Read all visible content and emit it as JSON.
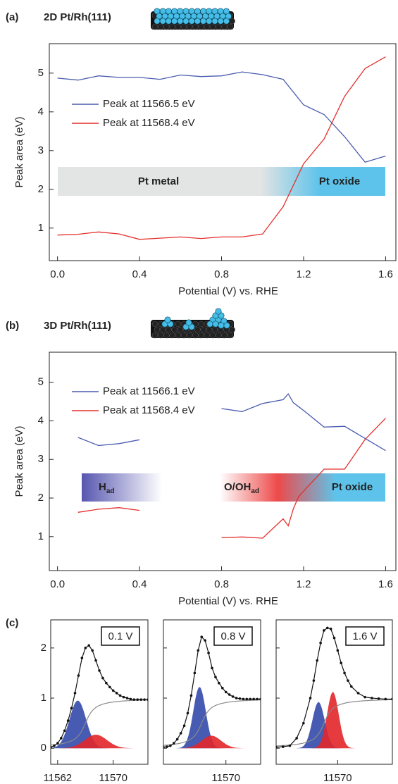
{
  "chart_data": [
    {
      "type": "line",
      "panel_label": "(a)",
      "title": "2D Pt/Rh(111)",
      "x_label": "Potential (V) vs. RHE",
      "y_label": "Peak area (eV)",
      "xlim": [
        -0.04,
        1.65
      ],
      "ylim": [
        0.16,
        5.76
      ],
      "xticks": [
        {
          "value": 0,
          "label": "0.0"
        },
        0.4,
        0.8,
        1.2,
        1.6
      ],
      "yticks": [
        1,
        2,
        3,
        4,
        5
      ],
      "series": [
        {
          "name": "Peak at 11566.5 eV",
          "color": "#4a5cae",
          "x": [
            0,
            0.1,
            0.2,
            0.3,
            0.4,
            0.5,
            0.6,
            0.7,
            0.8,
            0.9,
            1.0,
            1.1,
            1.2,
            1.3,
            1.4,
            1.5,
            1.6
          ],
          "values": [
            4.87,
            4.82,
            4.93,
            4.89,
            4.89,
            4.84,
            4.95,
            4.91,
            4.93,
            5.03,
            4.96,
            4.84,
            4.18,
            3.93,
            3.36,
            2.7,
            2.86
          ]
        },
        {
          "name": "Peak at 11568.4 eV",
          "color": "#e2302c",
          "x": [
            0,
            0.1,
            0.2,
            0.3,
            0.4,
            0.5,
            0.6,
            0.7,
            0.8,
            0.9,
            1.0,
            1.1,
            1.2,
            1.3,
            1.4,
            1.5,
            1.6
          ],
          "values": [
            0.82,
            0.84,
            0.9,
            0.85,
            0.71,
            0.74,
            0.77,
            0.73,
            0.77,
            0.77,
            0.85,
            1.55,
            2.66,
            3.3,
            4.4,
            5.12,
            5.42
          ]
        }
      ],
      "bands": [
        {
          "text": "Pt metal"
        },
        {
          "text": "Pt oxide"
        }
      ]
    },
    {
      "type": "line",
      "panel_label": "(b)",
      "title": "3D Pt/Rh(111)",
      "x_label": "Potential (V) vs. RHE",
      "y_label": "Peak area (eV)",
      "xlim": [
        -0.04,
        1.65
      ],
      "ylim": [
        0.12,
        5.78
      ],
      "xticks": [
        {
          "value": 0,
          "label": "0.0"
        },
        0.4,
        0.8,
        1.2,
        1.6
      ],
      "yticks": [
        1,
        2,
        3,
        4,
        5
      ],
      "series": [
        {
          "name": "Peak at 11566.1 eV",
          "color": "#4a5cae",
          "x": [
            0.1,
            0.2,
            0.3,
            0.4,
            0.6,
            0.8,
            0.9,
            1.0,
            1.1,
            1.125,
            1.15,
            1.175,
            1.2,
            1.3,
            1.4,
            1.6
          ],
          "values": [
            3.57,
            3.36,
            3.41,
            3.51,
            null,
            4.32,
            4.24,
            4.45,
            4.55,
            4.7,
            4.47,
            4.37,
            4.27,
            3.84,
            3.86,
            3.23
          ]
        },
        {
          "name": "Peak at 11568.4 eV",
          "color": "#e2302c",
          "x": [
            0.1,
            0.2,
            0.3,
            0.4,
            0.6,
            0.8,
            0.9,
            1.0,
            1.1,
            1.125,
            1.15,
            1.175,
            1.2,
            1.3,
            1.4,
            1.5,
            1.6
          ],
          "values": [
            1.63,
            1.71,
            1.75,
            1.68,
            null,
            0.97,
            0.99,
            0.96,
            1.46,
            1.28,
            1.72,
            2.03,
            2.18,
            2.75,
            2.75,
            3.52,
            4.07
          ]
        }
      ],
      "bands": [
        {
          "text": "H",
          "sub": "ad"
        },
        {
          "text": "O/OH",
          "sub": "ad"
        },
        {
          "text": "Pt oxide"
        }
      ]
    },
    {
      "type": "spectra",
      "panel_label": "(c)",
      "ylim": [
        -0.32,
        2.56
      ],
      "yticks": [
        0,
        1,
        2
      ],
      "subplots": [
        {
          "label": "0.1 V",
          "xlim": [
            11561,
            11575
          ],
          "xticks": [
            11562,
            11570
          ],
          "x": [
            11561,
            11561.5,
            11562,
            11562.5,
            11563,
            11563.5,
            11564,
            11564.5,
            11565,
            11565.5,
            11566,
            11566.5,
            11567,
            11567.5,
            11568,
            11568.5,
            11569,
            11569.5,
            11570,
            11570.5,
            11571,
            11571.5,
            11572,
            11572.5,
            11573,
            11573.5,
            11574,
            11574.5,
            11575
          ],
          "values": [
            0.02,
            0.05,
            0.1,
            0.2,
            0.35,
            0.55,
            0.8,
            1.1,
            1.45,
            1.8,
            2.0,
            2.05,
            1.95,
            1.75,
            1.55,
            1.4,
            1.3,
            1.22,
            1.15,
            1.1,
            1.05,
            1.02,
            1.0,
            0.98,
            0.97,
            0.97,
            0.97,
            0.97,
            0.97
          ],
          "background": {
            "center": 11566,
            "height": 1,
            "width": 1
          },
          "peaks": [
            {
              "center": 11564.9,
              "height": 0.95,
              "width": 1.2,
              "color": "#3349aa"
            },
            {
              "center": 11567.5,
              "height": 0.27,
              "width": 1.6,
              "color": "#e2262a"
            }
          ]
        },
        {
          "label": "0.8 V",
          "xlim": [
            11561,
            11575
          ],
          "xticks": [
            11570
          ],
          "x": [
            11561,
            11561.5,
            11562,
            11562.5,
            11563,
            11563.5,
            11564,
            11564.5,
            11565,
            11565.5,
            11566,
            11566.5,
            11567,
            11567.5,
            11568,
            11568.5,
            11569,
            11569.5,
            11570,
            11570.5,
            11571,
            11571.5,
            11572,
            11572.5,
            11573,
            11573.5,
            11574,
            11574.5,
            11575
          ],
          "values": [
            0.02,
            0.03,
            0.05,
            0.1,
            0.18,
            0.3,
            0.45,
            0.7,
            1.05,
            1.5,
            1.95,
            2.22,
            2.15,
            1.9,
            1.6,
            1.42,
            1.3,
            1.2,
            1.12,
            1.07,
            1.03,
            1.0,
            0.99,
            0.98,
            0.98,
            0.98,
            0.98,
            0.98,
            0.98
          ],
          "background": {
            "center": 11566.5,
            "height": 1,
            "width": 1
          },
          "peaks": [
            {
              "center": 11566.2,
              "height": 1.22,
              "width": 0.9,
              "color": "#3349aa"
            },
            {
              "center": 11567.9,
              "height": 0.25,
              "width": 1.4,
              "color": "#e2262a"
            }
          ]
        },
        {
          "label": "1.6 V",
          "xlim": [
            11561,
            11578
          ],
          "xticks": [
            11570
          ],
          "x": [
            11561,
            11562,
            11563,
            11564,
            11565,
            11566,
            11566.5,
            11567,
            11567.5,
            11568,
            11568.5,
            11569,
            11569.5,
            11570,
            11570.5,
            11571,
            11571.5,
            11572,
            11573,
            11574,
            11575,
            11576,
            11577,
            11578
          ],
          "values": [
            0.02,
            0.03,
            0.05,
            0.2,
            0.5,
            1.0,
            1.35,
            1.75,
            2.1,
            2.35,
            2.4,
            2.38,
            2.2,
            1.95,
            1.7,
            1.5,
            1.35,
            1.23,
            1.1,
            1.02,
            1.0,
            0.99,
            0.98,
            0.98
          ],
          "background": {
            "center": 11568,
            "height": 1,
            "width": 1
          },
          "peaks": [
            {
              "center": 11567.2,
              "height": 0.92,
              "width": 0.9,
              "color": "#3349aa"
            },
            {
              "center": 11569.3,
              "height": 1.12,
              "width": 0.85,
              "color": "#e2262a"
            }
          ]
        }
      ]
    }
  ]
}
